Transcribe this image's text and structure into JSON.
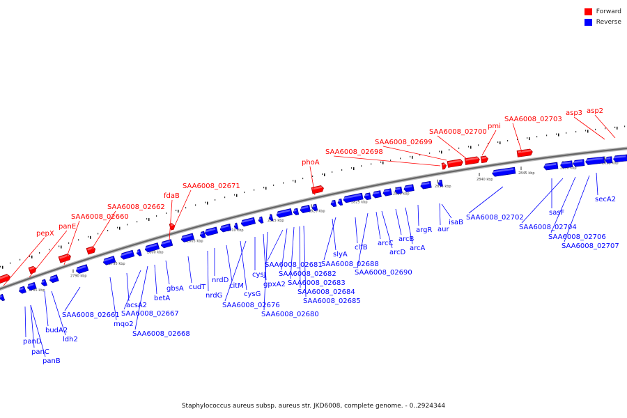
{
  "legend": {
    "forward_label": "Forward",
    "reverse_label": "Reverse",
    "forward_color": "#ff0000",
    "reverse_color": "#0000ff"
  },
  "caption": "Staphylococcus aureus subsp. aureus str. JKD6008, complete genome. - 0..2924344",
  "colors": {
    "forward": "#ff0000",
    "reverse": "#0000ff",
    "axis": "#888888"
  },
  "ticks": [
    "2785 kbp",
    "2790 kbp",
    "2795 kbp",
    "2800 kbp",
    "2805 kbp",
    "2810 kbp",
    "2815 kbp",
    "2820 kbp",
    "2825 kbp",
    "2830 kbp",
    "2835 kbp",
    "2840 kbp",
    "2845 kbp",
    "2850 kbp",
    "2855 kbp"
  ],
  "forward_genes": [
    "pepX",
    "panE",
    "SAA6008_02660",
    "SAA6008_02662",
    "fdaB",
    "SAA6008_02671",
    "phoA",
    "SAA6008_02698",
    "SAA6008_02699",
    "SAA6008_02700",
    "pmi",
    "SAA6008_02703",
    "asp3",
    "asp2"
  ],
  "reverse_genes": [
    "panD",
    "panC",
    "panB",
    "budA2",
    "ldh2",
    "SAA6008_02661",
    "mqo2",
    "acsA2",
    "SAA6008_02667",
    "SAA6008_02668",
    "betA",
    "gbsA",
    "cudT",
    "nrdG",
    "nrdD",
    "citM",
    "cysG",
    "SAA6008_02676",
    "cysJ",
    "gpxA2",
    "SAA6008_02680",
    "SAA6008_02681",
    "SAA6008_02682",
    "SAA6008_02683",
    "SAA6008_02684",
    "SAA6008_02685",
    "slyA",
    "SAA6008_02688",
    "clfB",
    "SAA6008_02690",
    "arcC",
    "arcD",
    "arcB",
    "arcA",
    "argR",
    "aur",
    "isaB",
    "SAA6008_02702",
    "sasF",
    "SAA6008_02704",
    "SAA6008_02706",
    "SAA6008_02707",
    "secA2"
  ]
}
